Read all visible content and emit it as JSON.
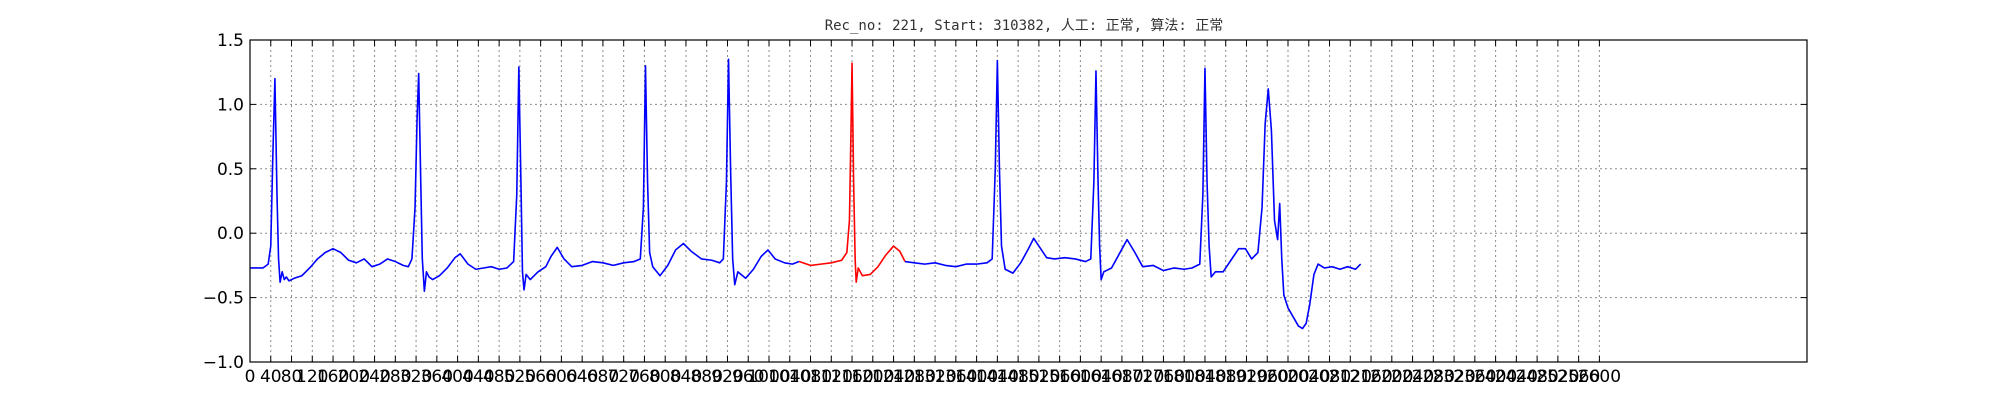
{
  "chart_data": {
    "type": "line",
    "title": "Rec_no: 221, Start: 310382, 人工: 正常, 算法: 正常",
    "xlabel": "",
    "ylabel": "",
    "xlim": [
      0,
      3000
    ],
    "ylim": [
      -1.0,
      1.5
    ],
    "grid": true,
    "ytick_labels": [
      "1.5",
      "1.0",
      "0.5",
      "0.0",
      "−0.5",
      "−1.0"
    ],
    "ytick_values": [
      1.5,
      1.0,
      0.5,
      0.0,
      -0.5,
      -1.0
    ],
    "xtick_labels": [
      "0",
      "40",
      "80",
      "120",
      "160",
      "200",
      "240",
      "280",
      "320",
      "360",
      "400",
      "440",
      "480",
      "520",
      "560",
      "600",
      "640",
      "680",
      "720",
      "760",
      "800",
      "840",
      "880",
      "920",
      "960",
      "1000",
      "1040",
      "1080",
      "1120",
      "1160",
      "1200",
      "1240",
      "1280",
      "1320",
      "1360",
      "1400",
      "1440",
      "1480",
      "1520",
      "1560",
      "1600",
      "1640",
      "1680",
      "1720",
      "1760",
      "1800",
      "1840",
      "1880",
      "1920",
      "1960",
      "2000",
      "2040",
      "2080",
      "2120",
      "2160",
      "2200",
      "2240",
      "2280",
      "2320",
      "2360",
      "2400",
      "2440",
      "2480",
      "2520",
      "2560",
      "2600"
    ],
    "xtick_values": [
      0,
      40,
      80,
      120,
      160,
      200,
      240,
      280,
      320,
      360,
      400,
      440,
      480,
      520,
      560,
      600,
      640,
      680,
      720,
      760,
      800,
      840,
      880,
      920,
      960,
      1000,
      1040,
      1080,
      1120,
      1160,
      1200,
      1240,
      1280,
      1320,
      1360,
      1400,
      1440,
      1480,
      1520,
      1560,
      1600,
      1640,
      1680,
      1720,
      1760,
      1800,
      1840,
      1880,
      1920,
      1960,
      2000,
      2040,
      2080,
      2120,
      2160,
      2200,
      2240,
      2280,
      2320,
      2360,
      2400,
      2440,
      2480,
      2520,
      2560,
      2600
    ],
    "series": [
      {
        "color": "#0000ff",
        "points": [
          [
            0,
            -0.27
          ],
          [
            25,
            -0.27
          ],
          [
            35,
            -0.24
          ],
          [
            40,
            -0.1
          ],
          [
            44,
            0.6
          ],
          [
            48,
            1.2
          ],
          [
            52,
            0.3
          ],
          [
            55,
            -0.2
          ],
          [
            58,
            -0.38
          ],
          [
            62,
            -0.3
          ],
          [
            66,
            -0.36
          ],
          [
            70,
            -0.34
          ],
          [
            75,
            -0.37
          ],
          [
            85,
            -0.35
          ],
          [
            100,
            -0.33
          ],
          [
            115,
            -0.27
          ],
          [
            130,
            -0.2
          ],
          [
            145,
            -0.15
          ],
          [
            160,
            -0.12
          ],
          [
            175,
            -0.15
          ],
          [
            190,
            -0.21
          ],
          [
            205,
            -0.23
          ],
          [
            220,
            -0.2
          ],
          [
            235,
            -0.26
          ],
          [
            250,
            -0.24
          ],
          [
            265,
            -0.2
          ],
          [
            280,
            -0.22
          ],
          [
            295,
            -0.25
          ],
          [
            305,
            -0.26
          ],
          [
            312,
            -0.2
          ],
          [
            318,
            0.2
          ],
          [
            322,
            0.9
          ],
          [
            325,
            1.24
          ],
          [
            329,
            0.4
          ],
          [
            332,
            -0.2
          ],
          [
            336,
            -0.45
          ],
          [
            340,
            -0.3
          ],
          [
            345,
            -0.34
          ],
          [
            352,
            -0.36
          ],
          [
            365,
            -0.33
          ],
          [
            380,
            -0.27
          ],
          [
            395,
            -0.19
          ],
          [
            405,
            -0.16
          ],
          [
            420,
            -0.24
          ],
          [
            435,
            -0.28
          ],
          [
            450,
            -0.27
          ],
          [
            465,
            -0.26
          ],
          [
            480,
            -0.28
          ],
          [
            495,
            -0.27
          ],
          [
            508,
            -0.22
          ],
          [
            514,
            0.3
          ],
          [
            518,
            1.29
          ],
          [
            522,
            0.4
          ],
          [
            525,
            -0.3
          ],
          [
            528,
            -0.44
          ],
          [
            532,
            -0.32
          ],
          [
            540,
            -0.36
          ],
          [
            555,
            -0.3
          ],
          [
            570,
            -0.26
          ],
          [
            580,
            -0.18
          ],
          [
            592,
            -0.11
          ],
          [
            605,
            -0.2
          ],
          [
            620,
            -0.26
          ],
          [
            640,
            -0.25
          ],
          [
            660,
            -0.22
          ],
          [
            680,
            -0.23
          ],
          [
            700,
            -0.25
          ],
          [
            720,
            -0.23
          ],
          [
            740,
            -0.22
          ],
          [
            752,
            -0.2
          ],
          [
            758,
            0.2
          ],
          [
            762,
            1.3
          ],
          [
            766,
            0.4
          ],
          [
            770,
            -0.15
          ],
          [
            776,
            -0.26
          ],
          [
            790,
            -0.33
          ],
          [
            805,
            -0.25
          ],
          [
            820,
            -0.13
          ],
          [
            835,
            -0.08
          ],
          [
            850,
            -0.14
          ],
          [
            870,
            -0.2
          ],
          [
            890,
            -0.21
          ],
          [
            905,
            -0.23
          ],
          [
            912,
            -0.2
          ],
          [
            918,
            0.4
          ],
          [
            922,
            1.35
          ],
          [
            926,
            0.5
          ],
          [
            930,
            -0.2
          ],
          [
            934,
            -0.4
          ],
          [
            940,
            -0.3
          ],
          [
            955,
            -0.35
          ],
          [
            970,
            -0.28
          ],
          [
            985,
            -0.18
          ],
          [
            998,
            -0.13
          ],
          [
            1012,
            -0.2
          ],
          [
            1030,
            -0.23
          ],
          [
            1045,
            -0.24
          ],
          [
            1058,
            -0.22
          ]
        ]
      },
      {
        "color": "#ff0000",
        "points": [
          [
            1058,
            -0.22
          ],
          [
            1080,
            -0.25
          ],
          [
            1100,
            -0.24
          ],
          [
            1120,
            -0.23
          ],
          [
            1140,
            -0.21
          ],
          [
            1150,
            -0.15
          ],
          [
            1155,
            0.1
          ],
          [
            1158,
            0.8
          ],
          [
            1160,
            1.32
          ],
          [
            1163,
            0.4
          ],
          [
            1166,
            -0.2
          ],
          [
            1168,
            -0.38
          ],
          [
            1172,
            -0.27
          ],
          [
            1180,
            -0.33
          ],
          [
            1195,
            -0.32
          ],
          [
            1210,
            -0.26
          ],
          [
            1225,
            -0.17
          ],
          [
            1240,
            -0.1
          ],
          [
            1252,
            -0.14
          ],
          [
            1262,
            -0.22
          ]
        ]
      },
      {
        "color": "#0000ff",
        "points": [
          [
            1262,
            -0.22
          ],
          [
            1280,
            -0.23
          ],
          [
            1300,
            -0.24
          ],
          [
            1320,
            -0.23
          ],
          [
            1340,
            -0.25
          ],
          [
            1360,
            -0.26
          ],
          [
            1380,
            -0.24
          ],
          [
            1400,
            -0.24
          ],
          [
            1420,
            -0.23
          ],
          [
            1430,
            -0.2
          ],
          [
            1436,
            0.5
          ],
          [
            1440,
            1.34
          ],
          [
            1444,
            0.5
          ],
          [
            1448,
            -0.1
          ],
          [
            1455,
            -0.28
          ],
          [
            1470,
            -0.31
          ],
          [
            1485,
            -0.23
          ],
          [
            1500,
            -0.12
          ],
          [
            1510,
            -0.04
          ],
          [
            1520,
            -0.1
          ],
          [
            1535,
            -0.19
          ],
          [
            1550,
            -0.2
          ],
          [
            1570,
            -0.19
          ],
          [
            1590,
            -0.2
          ],
          [
            1610,
            -0.22
          ],
          [
            1620,
            -0.2
          ],
          [
            1626,
            0.4
          ],
          [
            1630,
            1.26
          ],
          [
            1634,
            0.4
          ],
          [
            1637,
            -0.1
          ],
          [
            1640,
            -0.36
          ],
          [
            1645,
            -0.3
          ],
          [
            1660,
            -0.27
          ],
          [
            1675,
            -0.16
          ],
          [
            1690,
            -0.05
          ],
          [
            1705,
            -0.15
          ],
          [
            1720,
            -0.26
          ],
          [
            1740,
            -0.25
          ],
          [
            1760,
            -0.29
          ],
          [
            1780,
            -0.27
          ],
          [
            1800,
            -0.28
          ],
          [
            1815,
            -0.27
          ],
          [
            1830,
            -0.24
          ],
          [
            1836,
            0.3
          ],
          [
            1840,
            1.28
          ],
          [
            1844,
            0.4
          ],
          [
            1848,
            -0.1
          ],
          [
            1852,
            -0.34
          ],
          [
            1860,
            -0.3
          ],
          [
            1875,
            -0.3
          ],
          [
            1890,
            -0.21
          ],
          [
            1905,
            -0.12
          ],
          [
            1918,
            -0.12
          ],
          [
            1930,
            -0.2
          ],
          [
            1942,
            -0.15
          ],
          [
            1950,
            0.2
          ],
          [
            1956,
            0.85
          ],
          [
            1962,
            1.12
          ],
          [
            1968,
            0.8
          ],
          [
            1974,
            0.1
          ],
          [
            1980,
            -0.05
          ],
          [
            1984,
            0.23
          ],
          [
            1988,
            -0.2
          ],
          [
            1992,
            -0.48
          ],
          [
            2000,
            -0.58
          ],
          [
            2010,
            -0.65
          ],
          [
            2020,
            -0.72
          ],
          [
            2028,
            -0.74
          ],
          [
            2035,
            -0.7
          ],
          [
            2042,
            -0.55
          ],
          [
            2050,
            -0.32
          ],
          [
            2058,
            -0.24
          ],
          [
            2070,
            -0.27
          ],
          [
            2085,
            -0.26
          ],
          [
            2100,
            -0.28
          ],
          [
            2115,
            -0.26
          ],
          [
            2130,
            -0.28
          ],
          [
            2140,
            -0.24
          ]
        ]
      }
    ]
  }
}
